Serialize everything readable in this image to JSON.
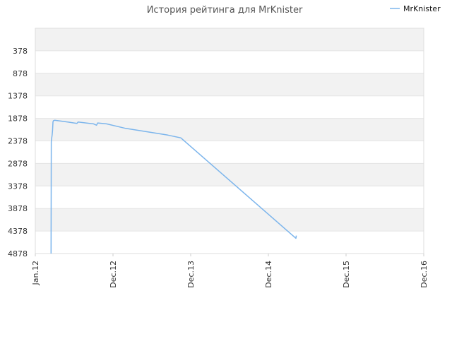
{
  "chart_data": {
    "type": "line",
    "title": "История рейтинга для MrKnister",
    "xlabel": "",
    "ylabel": "",
    "y_inverted": true,
    "ylim": [
      4878,
      -122
    ],
    "y_ticks": [
      378,
      878,
      1378,
      1878,
      2378,
      2878,
      3378,
      3878,
      4378,
      4878
    ],
    "x_ticks": [
      "Jan.12",
      "Dec.12",
      "Dec.13",
      "Dec.14",
      "Dec.15",
      "Dec.16"
    ],
    "x_range": [
      "2012-01-01",
      "2016-12-31"
    ],
    "grid": true,
    "legend": "top-right",
    "colors": {
      "series": "#7cb5ec",
      "band_shaded": "#f2f2f2",
      "band_plain": "#ffffff"
    },
    "series": [
      {
        "name": "MrKnister",
        "points": [
          [
            "2012-03-15",
            4878
          ],
          [
            "2012-03-16",
            2400
          ],
          [
            "2012-03-17",
            2350
          ],
          [
            "2012-03-20",
            2250
          ],
          [
            "2012-03-22",
            2150
          ],
          [
            "2012-03-24",
            1960
          ],
          [
            "2012-03-26",
            1930
          ],
          [
            "2012-04-01",
            1920
          ],
          [
            "2012-06-01",
            1960
          ],
          [
            "2012-07-15",
            1990
          ],
          [
            "2012-07-20",
            1960
          ],
          [
            "2012-10-01",
            2000
          ],
          [
            "2012-10-15",
            2030
          ],
          [
            "2012-10-20",
            1980
          ],
          [
            "2012-12-01",
            2000
          ],
          [
            "2013-03-01",
            2100
          ],
          [
            "2013-09-15",
            2250
          ],
          [
            "2013-11-15",
            2310
          ],
          [
            "2015-05-10",
            4540
          ],
          [
            "2015-05-12",
            4480
          ]
        ]
      }
    ]
  }
}
